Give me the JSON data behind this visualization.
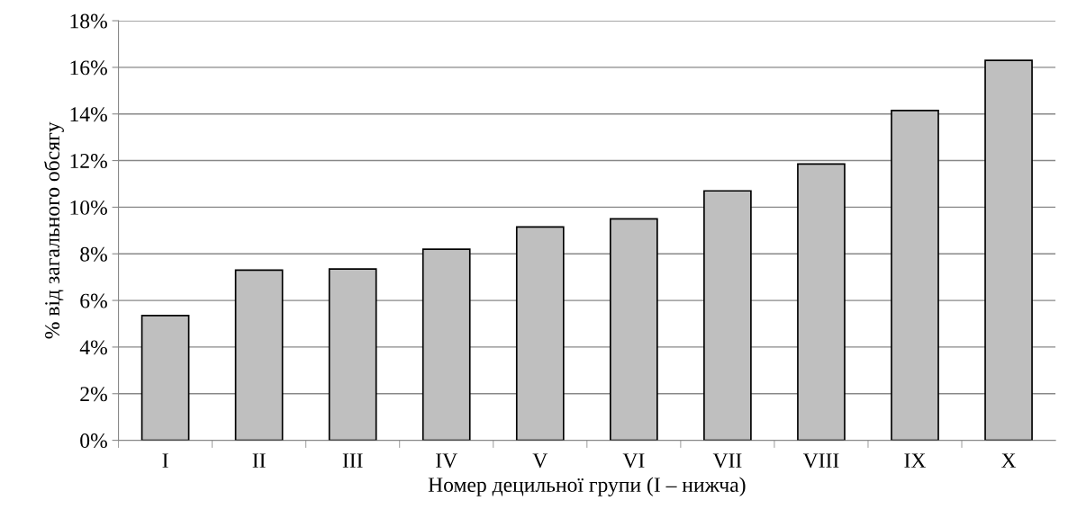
{
  "chart_data": {
    "type": "bar",
    "xlabel": "Номер децильної групи (I – нижча)",
    "ylabel": "% від загального обсягу",
    "categories": [
      "I",
      "II",
      "III",
      "IV",
      "V",
      "VI",
      "VII",
      "VIII",
      "IX",
      "X"
    ],
    "values": [
      5.35,
      7.3,
      7.35,
      8.2,
      9.15,
      9.5,
      10.7,
      11.85,
      14.15,
      16.3
    ],
    "color": "#bfbfbf",
    "ylim": [
      0,
      18
    ],
    "yticks": [
      {
        "value": 0,
        "label": "0%"
      },
      {
        "value": 2,
        "label": "2%"
      },
      {
        "value": 4,
        "label": "4%"
      },
      {
        "value": 6,
        "label": "6%"
      },
      {
        "value": 8,
        "label": "8%"
      },
      {
        "value": 10,
        "label": "10%"
      },
      {
        "value": 12,
        "label": "12%"
      },
      {
        "value": 14,
        "label": "14%"
      },
      {
        "value": 16,
        "label": "16%"
      },
      {
        "value": 18,
        "label": "18%"
      }
    ],
    "grid": "y"
  }
}
